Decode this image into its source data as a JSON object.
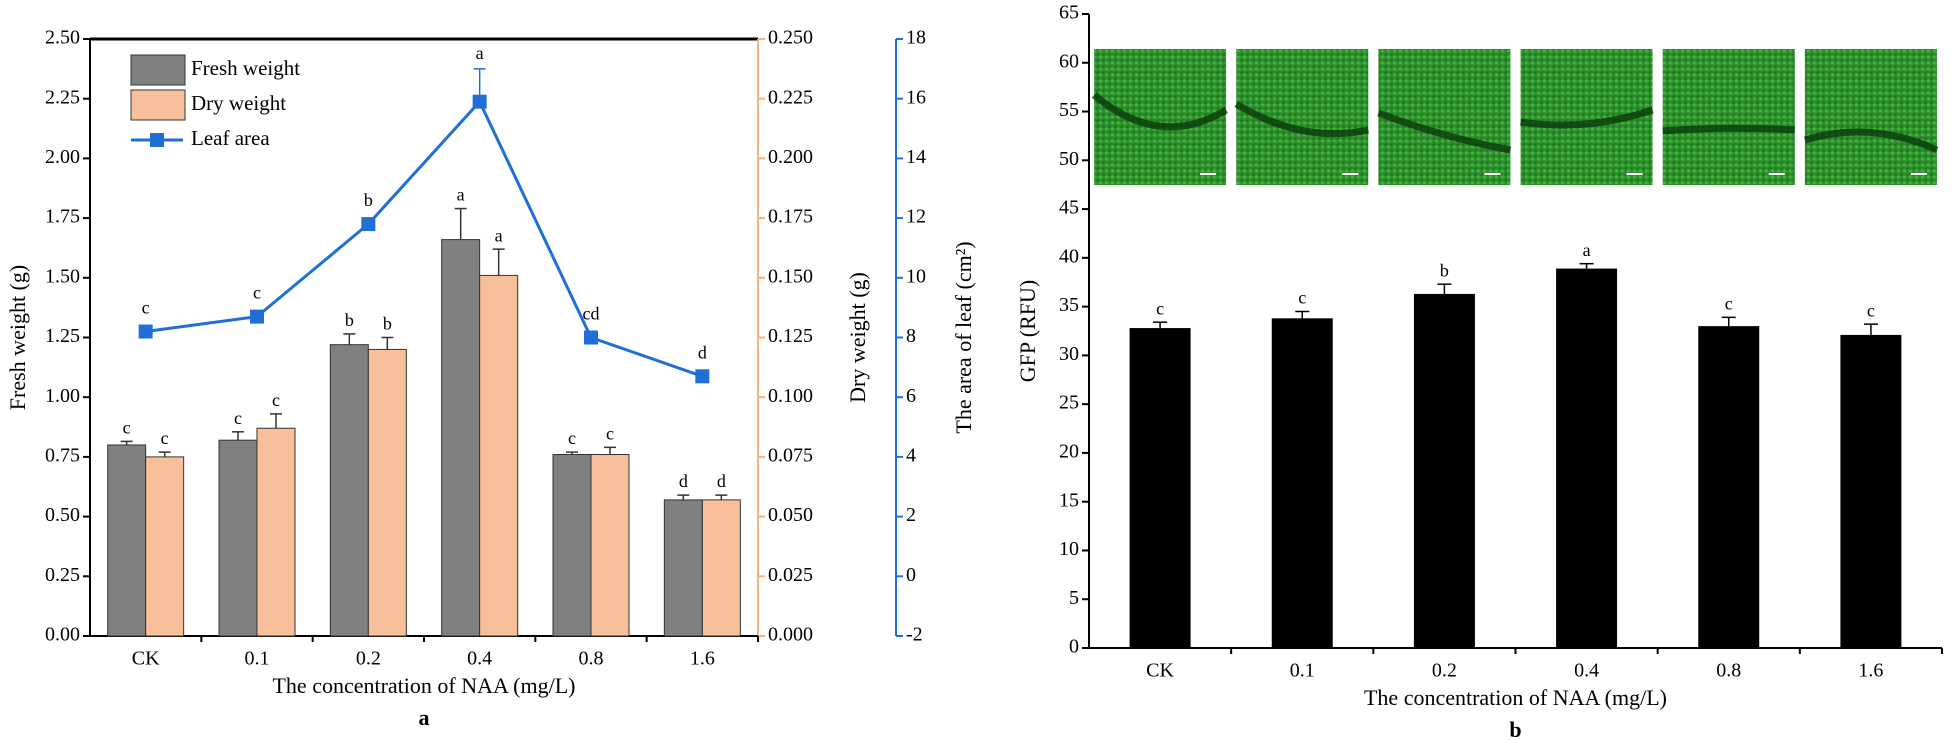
{
  "chart_data": [
    {
      "type": "bar_line",
      "categories": [
        "CK",
        "0.1",
        "0.2",
        "0.4",
        "0.8",
        "1.6"
      ],
      "xlabel": "The concentration of NAA (mg/L)",
      "ylabel": "Fresh weight (g)",
      "y2label": "Dry weight (g)",
      "y3label": "The area of leaf (cm²)",
      "caption": "a",
      "ylim": [
        0,
        2.5
      ],
      "yticks": [
        {
          "value": 0,
          "label": "0.00"
        },
        {
          "value": 0.25,
          "label": "0.25"
        },
        {
          "value": 0.5,
          "label": "0.50"
        },
        {
          "value": 0.75,
          "label": "0.75"
        },
        {
          "value": 1,
          "label": "1.00"
        },
        {
          "value": 1.25,
          "label": "1.25"
        },
        {
          "value": 1.5,
          "label": "1.50"
        },
        {
          "value": 1.75,
          "label": "1.75"
        },
        {
          "value": 2,
          "label": "2.00"
        },
        {
          "value": 2.25,
          "label": "2.25"
        },
        {
          "value": 2.5,
          "label": "2.50"
        }
      ],
      "y2lim": [
        0,
        0.25
      ],
      "y2ticks": [
        {
          "value": 0,
          "label": "0.000"
        },
        {
          "value": 0.025,
          "label": "0.025"
        },
        {
          "value": 0.05,
          "label": "0.050"
        },
        {
          "value": 0.075,
          "label": "0.075"
        },
        {
          "value": 0.1,
          "label": "0.100"
        },
        {
          "value": 0.125,
          "label": "0.125"
        },
        {
          "value": 0.15,
          "label": "0.150"
        },
        {
          "value": 0.175,
          "label": "0.175"
        },
        {
          "value": 0.2,
          "label": "0.200"
        },
        {
          "value": 0.225,
          "label": "0.225"
        },
        {
          "value": 0.25,
          "label": "0.250"
        }
      ],
      "y3lim": [
        -2,
        18
      ],
      "y3ticks": [
        -2,
        0,
        2,
        4,
        6,
        8,
        10,
        12,
        14,
        16,
        18
      ],
      "series": [
        {
          "name": "Fresh weight",
          "color": "#808080",
          "axis": "y",
          "values": [
            0.8,
            0.82,
            1.22,
            1.66,
            0.76,
            0.57
          ],
          "errors": [
            0.015,
            0.035,
            0.045,
            0.13,
            0.01,
            0.02
          ],
          "labels": [
            "c",
            "c",
            "b",
            "a",
            "c",
            "d"
          ]
        },
        {
          "name": "Dry weight",
          "color": "#f8c09a",
          "axis": "y2",
          "values": [
            0.075,
            0.087,
            0.12,
            0.151,
            0.076,
            0.057
          ],
          "errors": [
            0.002,
            0.006,
            0.005,
            0.011,
            0.003,
            0.002
          ],
          "labels": [
            "c",
            "c",
            "b",
            "a",
            "c",
            "d"
          ]
        },
        {
          "name": "Leaf area",
          "color": "#1f6fd6",
          "axis": "y3",
          "values": [
            8.2,
            8.7,
            11.8,
            15.9,
            8.0,
            6.7
          ],
          "errors": [
            0.1,
            0.1,
            0.1,
            1.1,
            0.1,
            0.1
          ],
          "labels": [
            "c",
            "c",
            "b",
            "a",
            "cd",
            "d"
          ]
        }
      ]
    },
    {
      "type": "bar",
      "categories": [
        "CK",
        "0.1",
        "0.2",
        "0.4",
        "0.8",
        "1.6"
      ],
      "xlabel": "The concentration of NAA (mg/L)",
      "ylabel": "GFP (RFU)",
      "caption": "b",
      "ylim": [
        0,
        65
      ],
      "yticks": [
        0,
        5,
        10,
        15,
        20,
        25,
        30,
        35,
        40,
        45,
        50,
        55,
        60,
        65
      ],
      "color": "#000000",
      "values": [
        32.8,
        33.8,
        36.3,
        38.9,
        33.0,
        32.1
      ],
      "errors": [
        0.6,
        0.7,
        1.0,
        0.5,
        0.9,
        1.1
      ],
      "labels": [
        "c",
        "c",
        "b",
        "a",
        "c",
        "c"
      ]
    }
  ]
}
